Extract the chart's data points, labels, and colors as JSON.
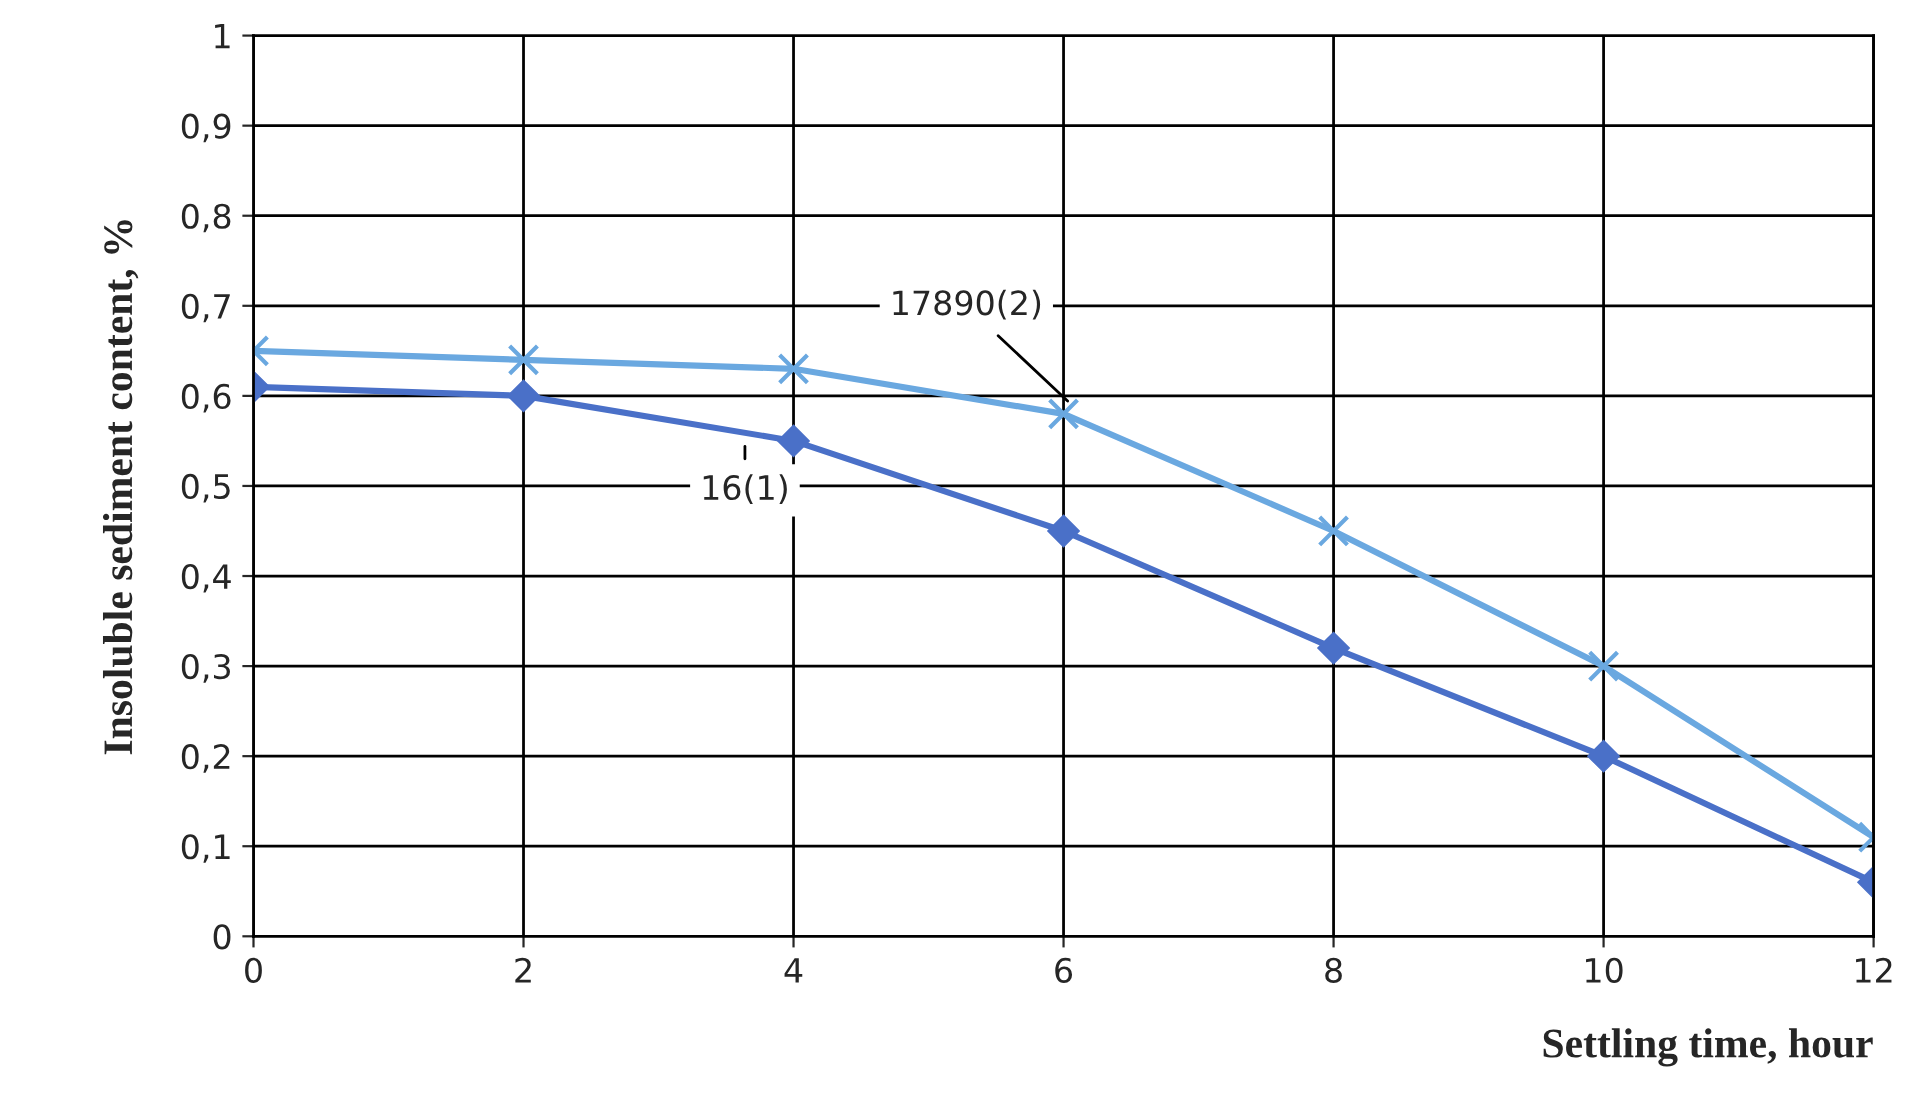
{
  "chart_data": {
    "type": "line",
    "xlabel": "Settling time, hour",
    "ylabel": "Insoluble sediment content, %",
    "x": [
      0,
      2,
      4,
      6,
      8,
      10,
      12
    ],
    "series": [
      {
        "name": "16(1)",
        "color": "#4a70c8",
        "marker": "diamond",
        "values": [
          0.61,
          0.6,
          0.55,
          0.45,
          0.32,
          0.2,
          0.06
        ]
      },
      {
        "name": "17890(2)",
        "color": "#6aa8e0",
        "marker": "cross",
        "values": [
          0.65,
          0.64,
          0.63,
          0.58,
          0.45,
          0.3,
          0.11
        ]
      }
    ],
    "xlim": [
      0,
      12
    ],
    "xticks": [
      0,
      2,
      4,
      6,
      8,
      10,
      12
    ],
    "ylim": [
      0,
      1
    ],
    "yticks": [
      0,
      {
        "value": 0.1,
        "label": "0,1"
      },
      {
        "value": 0.2,
        "label": "0,2"
      },
      {
        "value": 0.3,
        "label": "0,3"
      },
      {
        "value": 0.4,
        "label": "0,4"
      },
      {
        "value": 0.5,
        "label": "0,5"
      },
      {
        "value": 0.6,
        "label": "0,6"
      },
      {
        "value": 0.7,
        "label": "0,7"
      },
      {
        "value": 0.8,
        "label": "0,8"
      },
      {
        "value": 0.9,
        "label": "0,9"
      },
      1
    ],
    "grid": true,
    "legend": false,
    "line_style": "solid"
  }
}
